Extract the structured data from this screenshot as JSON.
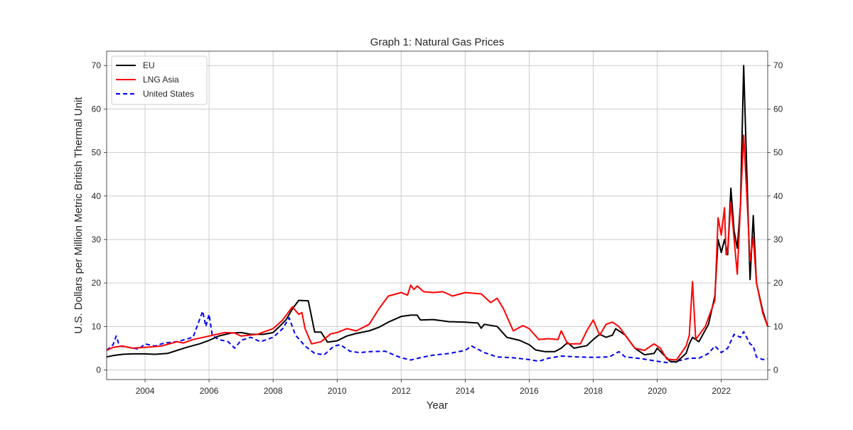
{
  "chart_data": {
    "type": "line",
    "title": "Graph 1: Natural Gas Prices",
    "xlabel": "Year",
    "ylabel": "U.S. Dollars per Million Metric British Thermal Unit",
    "xlim": [
      2002.8,
      2023.45
    ],
    "ylim": [
      -2.2,
      73.3
    ],
    "x_ticks": [
      2004,
      2006,
      2008,
      2010,
      2012,
      2014,
      2016,
      2018,
      2020,
      2022
    ],
    "x_tick_labels": [
      "2004",
      "2006",
      "2008",
      "2010",
      "2012",
      "2014",
      "2016",
      "2018",
      "2020",
      "2022"
    ],
    "y_ticks": [
      0,
      10,
      20,
      30,
      40,
      50,
      60,
      70
    ],
    "y_tick_labels": [
      "0",
      "10",
      "20",
      "30",
      "40",
      "50",
      "60",
      "70"
    ],
    "secondary_y_axis": "right, same scale",
    "grid": true,
    "legend_position": "top-left",
    "series": [
      {
        "name": "EU",
        "color": "#000000",
        "style": "solid",
        "points": [
          [
            2002.8,
            3.0
          ],
          [
            2003.0,
            3.3
          ],
          [
            2003.3,
            3.6
          ],
          [
            2003.6,
            3.7
          ],
          [
            2004.0,
            3.7
          ],
          [
            2004.3,
            3.6
          ],
          [
            2004.7,
            3.8
          ],
          [
            2005.0,
            4.5
          ],
          [
            2005.3,
            5.2
          ],
          [
            2005.7,
            6.0
          ],
          [
            2006.0,
            6.8
          ],
          [
            2006.3,
            7.8
          ],
          [
            2006.7,
            8.5
          ],
          [
            2007.0,
            8.6
          ],
          [
            2007.3,
            8.2
          ],
          [
            2007.7,
            8.2
          ],
          [
            2008.0,
            8.6
          ],
          [
            2008.2,
            10.0
          ],
          [
            2008.4,
            11.5
          ],
          [
            2008.6,
            14.0
          ],
          [
            2008.8,
            16.0
          ],
          [
            2009.1,
            15.9
          ],
          [
            2009.3,
            8.7
          ],
          [
            2009.5,
            8.7
          ],
          [
            2009.7,
            6.4
          ],
          [
            2010.0,
            6.7
          ],
          [
            2010.3,
            7.8
          ],
          [
            2010.6,
            8.4
          ],
          [
            2011.0,
            9.0
          ],
          [
            2011.3,
            9.8
          ],
          [
            2011.6,
            11.0
          ],
          [
            2012.0,
            12.3
          ],
          [
            2012.3,
            12.6
          ],
          [
            2012.5,
            12.6
          ],
          [
            2012.6,
            11.5
          ],
          [
            2013.0,
            11.6
          ],
          [
            2013.5,
            11.1
          ],
          [
            2014.0,
            11.0
          ],
          [
            2014.4,
            10.8
          ],
          [
            2014.5,
            9.6
          ],
          [
            2014.6,
            10.5
          ],
          [
            2015.0,
            10.0
          ],
          [
            2015.3,
            7.5
          ],
          [
            2015.7,
            6.8
          ],
          [
            2016.0,
            5.8
          ],
          [
            2016.2,
            4.6
          ],
          [
            2016.5,
            4.2
          ],
          [
            2016.8,
            4.2
          ],
          [
            2017.0,
            5.0
          ],
          [
            2017.2,
            6.3
          ],
          [
            2017.4,
            5.0
          ],
          [
            2017.8,
            5.6
          ],
          [
            2018.0,
            7.0
          ],
          [
            2018.2,
            8.2
          ],
          [
            2018.4,
            7.5
          ],
          [
            2018.6,
            8.0
          ],
          [
            2018.7,
            9.5
          ],
          [
            2019.0,
            8.0
          ],
          [
            2019.3,
            5.0
          ],
          [
            2019.6,
            3.5
          ],
          [
            2019.9,
            3.8
          ],
          [
            2020.0,
            5.0
          ],
          [
            2020.4,
            2.0
          ],
          [
            2020.6,
            1.8
          ],
          [
            2020.9,
            3.8
          ],
          [
            2021.0,
            6.0
          ],
          [
            2021.1,
            7.5
          ],
          [
            2021.3,
            6.5
          ],
          [
            2021.6,
            10.5
          ],
          [
            2021.8,
            17.0
          ],
          [
            2021.9,
            30.0
          ],
          [
            2022.0,
            27.0
          ],
          [
            2022.1,
            30.0
          ],
          [
            2022.2,
            26.5
          ],
          [
            2022.3,
            41.8
          ],
          [
            2022.4,
            32.0
          ],
          [
            2022.5,
            28.0
          ],
          [
            2022.6,
            38.0
          ],
          [
            2022.7,
            70.0
          ],
          [
            2022.8,
            45.0
          ],
          [
            2022.9,
            20.8
          ],
          [
            2023.0,
            35.5
          ],
          [
            2023.1,
            20.0
          ],
          [
            2023.3,
            13.5
          ],
          [
            2023.45,
            10.0
          ]
        ]
      },
      {
        "name": "LNG Asia",
        "color": "#ff0000",
        "style": "solid",
        "points": [
          [
            2002.8,
            4.5
          ],
          [
            2003.0,
            5.2
          ],
          [
            2003.3,
            5.5
          ],
          [
            2003.6,
            5.0
          ],
          [
            2004.0,
            5.2
          ],
          [
            2004.5,
            5.5
          ],
          [
            2005.0,
            6.5
          ],
          [
            2005.2,
            6.2
          ],
          [
            2005.5,
            7.0
          ],
          [
            2006.0,
            7.8
          ],
          [
            2006.5,
            8.6
          ],
          [
            2006.8,
            8.5
          ],
          [
            2007.0,
            7.8
          ],
          [
            2007.5,
            8.2
          ],
          [
            2008.0,
            9.5
          ],
          [
            2008.3,
            11.5
          ],
          [
            2008.6,
            14.5
          ],
          [
            2008.8,
            12.8
          ],
          [
            2008.9,
            13.2
          ],
          [
            2009.0,
            9.5
          ],
          [
            2009.2,
            6.0
          ],
          [
            2009.5,
            6.5
          ],
          [
            2009.8,
            8.3
          ],
          [
            2010.0,
            8.6
          ],
          [
            2010.3,
            9.5
          ],
          [
            2010.6,
            9.0
          ],
          [
            2011.0,
            10.5
          ],
          [
            2011.3,
            14.0
          ],
          [
            2011.6,
            17.0
          ],
          [
            2012.0,
            17.8
          ],
          [
            2012.2,
            17.2
          ],
          [
            2012.3,
            19.5
          ],
          [
            2012.4,
            18.5
          ],
          [
            2012.5,
            19.3
          ],
          [
            2012.7,
            18.0
          ],
          [
            2013.0,
            17.8
          ],
          [
            2013.3,
            18.0
          ],
          [
            2013.6,
            17.0
          ],
          [
            2014.0,
            17.8
          ],
          [
            2014.5,
            17.5
          ],
          [
            2014.8,
            15.5
          ],
          [
            2015.0,
            16.5
          ],
          [
            2015.2,
            14.0
          ],
          [
            2015.5,
            9.0
          ],
          [
            2015.8,
            10.2
          ],
          [
            2016.0,
            9.5
          ],
          [
            2016.3,
            7.0
          ],
          [
            2016.6,
            7.2
          ],
          [
            2016.9,
            7.0
          ],
          [
            2017.0,
            9.0
          ],
          [
            2017.2,
            6.0
          ],
          [
            2017.6,
            6.0
          ],
          [
            2017.8,
            9.0
          ],
          [
            2018.0,
            11.5
          ],
          [
            2018.2,
            8.0
          ],
          [
            2018.4,
            10.5
          ],
          [
            2018.6,
            11.0
          ],
          [
            2018.8,
            10.0
          ],
          [
            2019.0,
            8.0
          ],
          [
            2019.3,
            5.0
          ],
          [
            2019.6,
            4.5
          ],
          [
            2019.9,
            6.0
          ],
          [
            2020.1,
            5.0
          ],
          [
            2020.3,
            2.5
          ],
          [
            2020.6,
            2.3
          ],
          [
            2020.9,
            5.5
          ],
          [
            2021.0,
            8.0
          ],
          [
            2021.1,
            20.3
          ],
          [
            2021.2,
            7.0
          ],
          [
            2021.5,
            10.0
          ],
          [
            2021.8,
            16.0
          ],
          [
            2021.9,
            35.0
          ],
          [
            2022.0,
            31.0
          ],
          [
            2022.1,
            37.3
          ],
          [
            2022.15,
            26.5
          ],
          [
            2022.2,
            27.5
          ],
          [
            2022.3,
            38.5
          ],
          [
            2022.5,
            22.0
          ],
          [
            2022.7,
            54.0
          ],
          [
            2022.8,
            40.0
          ],
          [
            2022.9,
            25.0
          ],
          [
            2023.0,
            30.5
          ],
          [
            2023.1,
            20.0
          ],
          [
            2023.3,
            13.0
          ],
          [
            2023.45,
            10.0
          ]
        ]
      },
      {
        "name": "United States",
        "color": "#0000ee",
        "style": "dashed",
        "points": [
          [
            2002.8,
            4.5
          ],
          [
            2003.0,
            5.8
          ],
          [
            2003.1,
            7.8
          ],
          [
            2003.2,
            5.5
          ],
          [
            2003.5,
            5.2
          ],
          [
            2003.8,
            4.8
          ],
          [
            2004.0,
            6.0
          ],
          [
            2004.3,
            5.5
          ],
          [
            2004.6,
            6.2
          ],
          [
            2005.0,
            6.5
          ],
          [
            2005.5,
            7.5
          ],
          [
            2005.8,
            13.5
          ],
          [
            2005.9,
            10.0
          ],
          [
            2006.0,
            12.8
          ],
          [
            2006.1,
            8.0
          ],
          [
            2006.3,
            7.0
          ],
          [
            2006.6,
            6.5
          ],
          [
            2006.8,
            5.0
          ],
          [
            2007.0,
            6.8
          ],
          [
            2007.3,
            7.5
          ],
          [
            2007.6,
            6.5
          ],
          [
            2008.0,
            7.5
          ],
          [
            2008.3,
            9.5
          ],
          [
            2008.5,
            12.0
          ],
          [
            2008.7,
            8.0
          ],
          [
            2009.0,
            5.5
          ],
          [
            2009.3,
            3.8
          ],
          [
            2009.6,
            3.5
          ],
          [
            2009.9,
            5.5
          ],
          [
            2010.1,
            5.8
          ],
          [
            2010.4,
            4.3
          ],
          [
            2010.7,
            4.0
          ],
          [
            2011.0,
            4.2
          ],
          [
            2011.5,
            4.3
          ],
          [
            2012.0,
            2.8
          ],
          [
            2012.3,
            2.3
          ],
          [
            2012.7,
            3.0
          ],
          [
            2013.0,
            3.4
          ],
          [
            2013.5,
            3.8
          ],
          [
            2014.0,
            4.5
          ],
          [
            2014.2,
            5.5
          ],
          [
            2014.6,
            4.0
          ],
          [
            2015.0,
            3.0
          ],
          [
            2015.5,
            2.8
          ],
          [
            2016.0,
            2.4
          ],
          [
            2016.3,
            2.0
          ],
          [
            2016.6,
            2.7
          ],
          [
            2017.0,
            3.2
          ],
          [
            2017.5,
            3.0
          ],
          [
            2018.0,
            2.9
          ],
          [
            2018.5,
            3.0
          ],
          [
            2018.8,
            4.2
          ],
          [
            2019.0,
            3.0
          ],
          [
            2019.5,
            2.6
          ],
          [
            2020.0,
            2.0
          ],
          [
            2020.3,
            1.7
          ],
          [
            2020.6,
            2.0
          ],
          [
            2021.0,
            2.7
          ],
          [
            2021.3,
            2.7
          ],
          [
            2021.6,
            3.8
          ],
          [
            2021.8,
            5.5
          ],
          [
            2022.0,
            4.0
          ],
          [
            2022.2,
            5.0
          ],
          [
            2022.4,
            8.2
          ],
          [
            2022.6,
            7.5
          ],
          [
            2022.7,
            8.8
          ],
          [
            2022.9,
            6.0
          ],
          [
            2023.0,
            5.5
          ],
          [
            2023.1,
            3.0
          ],
          [
            2023.3,
            2.4
          ],
          [
            2023.45,
            2.6
          ]
        ]
      }
    ]
  }
}
